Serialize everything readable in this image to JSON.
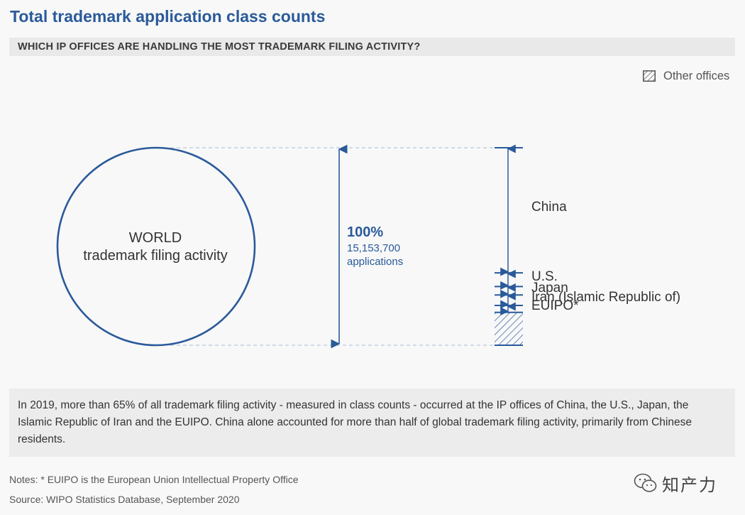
{
  "title": "Total trademark application class counts",
  "subtitle": "WHICH IP OFFICES ARE HANDLING THE MOST TRADEMARK FILING ACTIVITY?",
  "legend": {
    "label": "Other offices"
  },
  "circle": {
    "line1": "WORLD",
    "line2": "trademark filing activity"
  },
  "total": {
    "percent": "100%",
    "count": "15,153,700",
    "unit": "applications"
  },
  "colors": {
    "accent": "#2a5a9a",
    "guide": "#b7c8de"
  },
  "chart_data": {
    "type": "bar",
    "total_value": 15153700,
    "ylim": [
      0,
      15153700
    ],
    "categories": [
      "China",
      "U.S.",
      "Japan",
      "Iran (Islamic Republic of)",
      "EUIPO*",
      "Other offices"
    ],
    "values": [
      9600000,
      1050000,
      650000,
      800000,
      530000,
      2523700
    ],
    "share_percent": [
      63.4,
      6.9,
      4.3,
      5.3,
      3.5,
      16.6
    ]
  },
  "summary": "In 2019, more than 65% of all trademark filing activity - measured in class counts - occurred at the IP offices of China, the U.S., Japan, the Islamic Republic of Iran and the EUIPO. China alone accounted for more than half of global trademark filing activity, primarily from Chinese residents.",
  "notes": "Notes: * EUIPO is the European Union Intellectual Property Office",
  "source": "Source: WIPO Statistics Database, September 2020",
  "watermark": "知产力"
}
